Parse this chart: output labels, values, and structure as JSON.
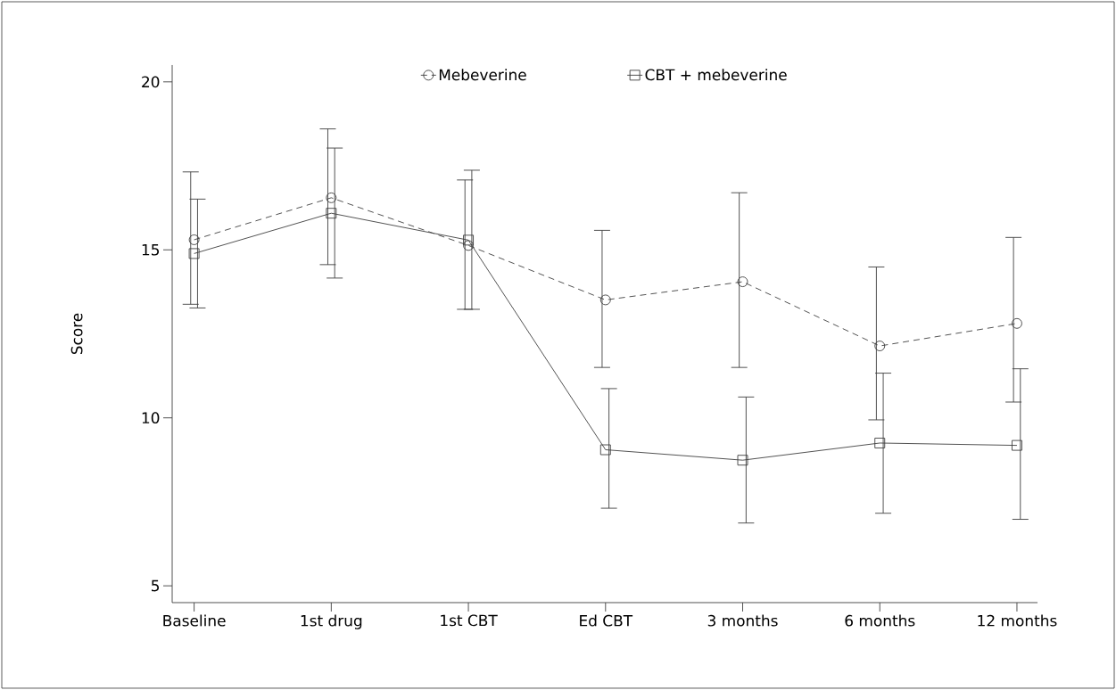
{
  "chart_data": {
    "type": "line",
    "ylabel": "Score",
    "categories": [
      "Baseline",
      "1st drug",
      "1st CBT",
      "Ed CBT",
      "3 months",
      "6 months",
      "12 months"
    ],
    "ylim": [
      4.5,
      20.5
    ],
    "yticks": [
      5,
      10,
      15,
      20
    ],
    "legend": "top",
    "series": [
      {
        "name": "Mebeverine",
        "color": "#404040",
        "marker": "circle",
        "line_style": "dashed",
        "values": [
          15.3,
          16.55,
          15.13,
          13.51,
          14.05,
          12.14,
          12.81
        ],
        "errors": [
          [
            13.38,
            17.32
          ],
          [
            14.56,
            18.6
          ],
          [
            13.23,
            17.08
          ],
          [
            11.5,
            15.58
          ],
          [
            11.5,
            16.7
          ],
          [
            9.94,
            14.49
          ],
          [
            10.47,
            15.37
          ]
        ]
      },
      {
        "name": "CBT + mebeverine",
        "color": "#404040",
        "marker": "square",
        "line_style": "solid",
        "values": [
          14.89,
          16.09,
          15.29,
          9.05,
          8.74,
          9.25,
          9.18
        ],
        "errors": [
          [
            13.27,
            16.51
          ],
          [
            14.16,
            18.03
          ],
          [
            13.23,
            17.37
          ],
          [
            7.31,
            10.87
          ],
          [
            6.87,
            10.62
          ],
          [
            7.16,
            11.33
          ],
          [
            6.98,
            11.46
          ]
        ]
      }
    ]
  }
}
